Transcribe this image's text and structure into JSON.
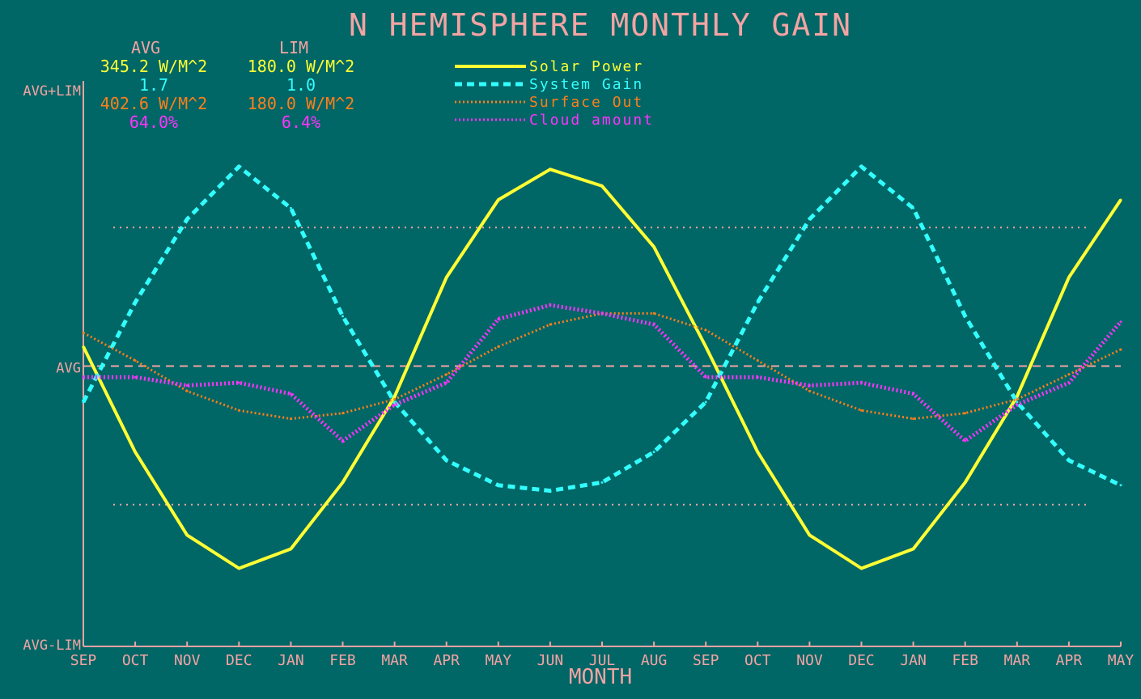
{
  "chart_data": {
    "type": "line",
    "title": "N HEMISPHERE MONTHLY GAIN",
    "xlabel": "MONTH",
    "x": [
      "SEP",
      "OCT",
      "NOV",
      "DEC",
      "JAN",
      "FEB",
      "MAR",
      "APR",
      "MAY",
      "JUN",
      "JUL",
      "AUG",
      "SEP",
      "OCT",
      "NOV",
      "DEC",
      "JAN",
      "FEB",
      "MAR",
      "APR",
      "MAY"
    ],
    "y_ticks": [
      "AVG+LIM",
      "AVG",
      "AVG-LIM"
    ],
    "ylim": [
      -1,
      1
    ],
    "reference_lines": [
      0.5,
      -0.5
    ],
    "stats": {
      "headers": [
        "AVG",
        "LIM"
      ],
      "rows": [
        {
          "avg": "345.2 W/M^2",
          "lim": "180.0 W/M^2",
          "color": "#ffff33"
        },
        {
          "avg": "1.7",
          "lim": "1.0",
          "color": "#33ffff"
        },
        {
          "avg": "402.6 W/M^2",
          "lim": "180.0 W/M^2",
          "color": "#ff7f1a"
        },
        {
          "avg": "64.0%",
          "lim": "6.4%",
          "color": "#ff33ff"
        }
      ]
    },
    "series": [
      {
        "name": "Solar Power",
        "color": "#ffff33",
        "style": "solid",
        "values": [
          0.07,
          -0.31,
          -0.61,
          -0.73,
          -0.66,
          -0.42,
          -0.11,
          0.32,
          0.6,
          0.71,
          0.65,
          0.43,
          0.07,
          -0.31,
          -0.61,
          -0.73,
          -0.66,
          -0.42,
          -0.11,
          0.32,
          0.6
        ]
      },
      {
        "name": "System Gain",
        "color": "#33ffff",
        "style": "dashed",
        "values": [
          -0.13,
          0.23,
          0.53,
          0.72,
          0.57,
          0.18,
          -0.13,
          -0.34,
          -0.43,
          -0.45,
          -0.42,
          -0.31,
          -0.13,
          0.23,
          0.53,
          0.72,
          0.57,
          0.18,
          -0.13,
          -0.34,
          -0.43
        ]
      },
      {
        "name": "Surface Out",
        "color": "#ff7f1a",
        "style": "dotted",
        "values": [
          0.12,
          0.02,
          -0.09,
          -0.16,
          -0.19,
          -0.17,
          -0.12,
          -0.03,
          0.07,
          0.15,
          0.19,
          0.19,
          0.13,
          0.02,
          -0.09,
          -0.16,
          -0.19,
          -0.17,
          -0.12,
          -0.03,
          0.06
        ]
      },
      {
        "name": "Cloud amount",
        "color": "#ff33ff",
        "style": "dotted",
        "values": [
          -0.04,
          -0.04,
          -0.07,
          -0.06,
          -0.1,
          -0.27,
          -0.14,
          -0.06,
          0.17,
          0.22,
          0.19,
          0.15,
          -0.04,
          -0.04,
          -0.07,
          -0.06,
          -0.1,
          -0.27,
          -0.14,
          -0.06,
          0.16
        ]
      }
    ],
    "legend_position": "top",
    "grid": false
  }
}
